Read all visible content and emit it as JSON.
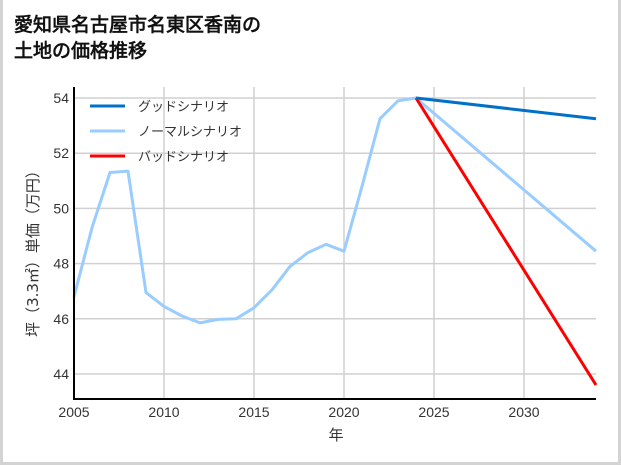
{
  "title_line1": "愛知県名古屋市名東区香南の",
  "title_line2": "土地の価格推移",
  "chart_data": {
    "type": "line",
    "title": "愛知県名古屋市名東区香南の土地の価格推移",
    "xlabel": "年",
    "ylabel": "坪（3.3㎡）単価（万円）",
    "xlim": [
      2005,
      2034
    ],
    "ylim": [
      43.1,
      54.4
    ],
    "xticks": [
      2005,
      2010,
      2015,
      2020,
      2025,
      2030
    ],
    "yticks": [
      44,
      46,
      48,
      50,
      52,
      54
    ],
    "grid": true,
    "legend_position": "upper left",
    "series": [
      {
        "name": "グッドシナリオ",
        "color": "#0070c8",
        "x": [
          2024,
          2034
        ],
        "values": [
          54.0,
          53.25
        ]
      },
      {
        "name": "ノーマルシナリオ",
        "color": "#99ccff",
        "x": [
          2005,
          2006,
          2007,
          2008,
          2009,
          2010,
          2011,
          2012,
          2013,
          2014,
          2015,
          2016,
          2017,
          2018,
          2019,
          2020,
          2021,
          2022,
          2023,
          2024,
          2034
        ],
        "values": [
          46.8,
          49.3,
          51.3,
          51.35,
          46.95,
          46.45,
          46.1,
          45.85,
          45.98,
          46.0,
          46.4,
          47.05,
          47.9,
          48.4,
          48.7,
          48.45,
          50.8,
          53.25,
          53.9,
          54.0,
          48.45
        ]
      },
      {
        "name": "バッドシナリオ",
        "color": "#ff0000",
        "x": [
          2024,
          2034
        ],
        "values": [
          54.0,
          43.6
        ]
      }
    ]
  }
}
